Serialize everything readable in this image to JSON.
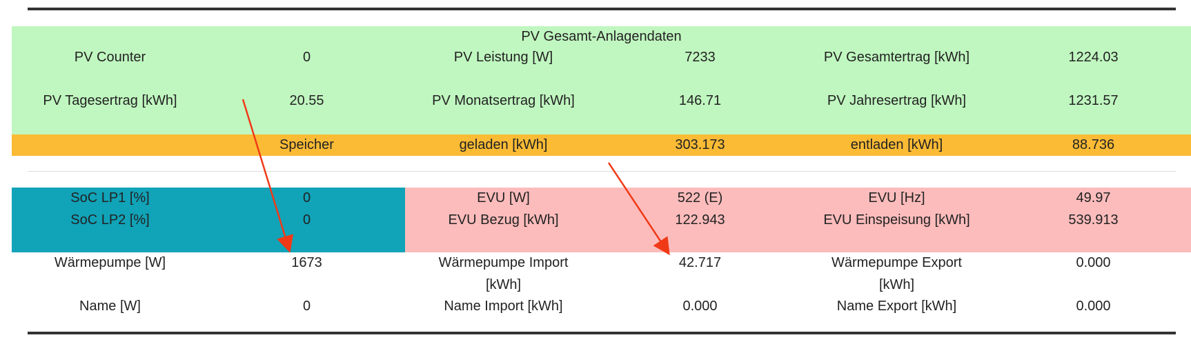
{
  "pv": {
    "title": "PV Gesamt-Anlagendaten",
    "rows": [
      [
        "PV Counter",
        "0",
        "PV Leistung [W]",
        "7233",
        "PV Gesamtertrag [kWh]",
        "1224.03"
      ],
      [
        "PV Tagesertrag [kWh]",
        "20.55",
        "PV Monatsertrag [kWh]",
        "146.71",
        "PV Jahresertrag [kWh]",
        "1231.57"
      ]
    ]
  },
  "storage": [
    "Speicher",
    "geladen [kWh]",
    "303.173",
    "entladen [kWh]",
    "88.736"
  ],
  "grid": {
    "rows": [
      [
        "SoC LP1 [%]",
        "0",
        "EVU [W]",
        "522 (E)",
        "EVU [Hz]",
        "49.97"
      ],
      [
        "SoC LP2 [%]",
        "0",
        "EVU Bezug [kWh]",
        "122.943",
        "EVU Einspeisung [kWh]",
        "539.913"
      ]
    ]
  },
  "heatpump": {
    "rows": [
      [
        "Wärmepumpe [W]",
        "1673",
        "Wärmepumpe Import [kWh]",
        "42.717",
        "Wärmepumpe Export [kWh]",
        "0.000"
      ],
      [
        "Name [W]",
        "0",
        "Name Import [kWh]",
        "0.000",
        "Name Export [kWh]",
        "0.000"
      ]
    ]
  }
}
